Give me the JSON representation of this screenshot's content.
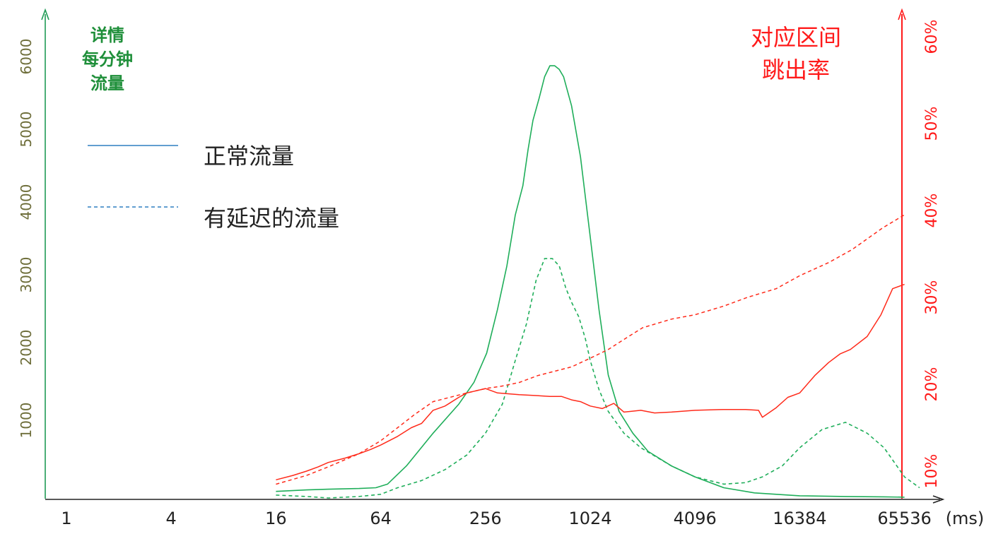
{
  "chart_data": {
    "type": "line",
    "left_axis": {
      "title_lines": [
        "详情",
        "每分钟",
        "流量"
      ],
      "ticks": [
        "1000",
        "2000",
        "3000",
        "4000",
        "5000",
        "6000"
      ],
      "tick_values": [
        1000,
        2000,
        3000,
        4000,
        5000,
        6000
      ],
      "ylim": [
        0,
        6500
      ],
      "color": "#1f9a55"
    },
    "right_axis": {
      "title_lines": [
        "对应区间",
        "跳出率"
      ],
      "ticks": [
        "10%",
        "20%",
        "30%",
        "40%",
        "50%",
        "60%"
      ],
      "tick_values": [
        10,
        20,
        30,
        40,
        50,
        60
      ],
      "ylim": [
        5,
        62
      ],
      "color": "#ff1a1a"
    },
    "x_axis": {
      "scale": "log2",
      "ticks": [
        "1",
        "4",
        "16",
        "64",
        "256",
        "1024",
        "4096",
        "16384",
        "65536"
      ],
      "tick_values": [
        1,
        4,
        16,
        64,
        256,
        1024,
        4096,
        16384,
        65536
      ],
      "unit": "(ms)"
    },
    "legend": [
      {
        "label": "正常流量",
        "style": "solid",
        "color": "#2f7fc0"
      },
      {
        "label": "有延迟的流量",
        "style": "dashed",
        "color": "#2f7fc0"
      }
    ],
    "series": [
      {
        "axis": "left",
        "style": "solid",
        "color": "#1fae5a",
        "x": [
          16,
          24,
          32,
          48,
          60,
          70,
          90,
          128,
          180,
          220,
          260,
          300,
          340,
          380,
          420,
          450,
          480,
          520,
          560,
          600,
          640,
          680,
          720,
          800,
          900,
          1024,
          1150,
          1300,
          1500,
          1800,
          2200,
          3000,
          4096,
          6000,
          9000,
          16384,
          30000,
          50000,
          65536
        ],
        "y": [
          100,
          120,
          130,
          140,
          150,
          200,
          450,
          900,
          1300,
          1600,
          2000,
          2600,
          3200,
          3900,
          4300,
          4800,
          5200,
          5500,
          5800,
          5950,
          5950,
          5900,
          5800,
          5400,
          4700,
          3600,
          2600,
          1700,
          1200,
          900,
          650,
          450,
          300,
          150,
          80,
          40,
          30,
          25,
          20
        ]
      },
      {
        "axis": "left",
        "style": "dashed",
        "color": "#1fae5a",
        "x": [
          16,
          24,
          32,
          48,
          64,
          80,
          110,
          150,
          200,
          256,
          320,
          380,
          440,
          500,
          560,
          620,
          680,
          740,
          800,
          880,
          960,
          1024,
          1150,
          1300,
          1600,
          2000,
          3000,
          4096,
          6000,
          8000,
          10000,
          13000,
          16384,
          22000,
          30000,
          40000,
          50000,
          65536,
          80000
        ],
        "y": [
          50,
          30,
          10,
          30,
          60,
          150,
          250,
          400,
          600,
          900,
          1300,
          1900,
          2400,
          3000,
          3300,
          3300,
          3200,
          2900,
          2700,
          2500,
          2200,
          1900,
          1500,
          1200,
          900,
          700,
          450,
          300,
          200,
          220,
          300,
          450,
          700,
          950,
          1050,
          900,
          700,
          300,
          150
        ]
      },
      {
        "axis": "right",
        "style": "solid",
        "color": "#ff2a1a",
        "x": [
          16,
          20,
          24,
          28,
          32,
          40,
          48,
          56,
          64,
          80,
          96,
          110,
          128,
          150,
          180,
          200,
          256,
          300,
          400,
          500,
          600,
          700,
          800,
          900,
          1024,
          1200,
          1400,
          1600,
          2000,
          2400,
          3000,
          4096,
          6000,
          8000,
          9500,
          10000,
          12000,
          14000,
          16384,
          20000,
          24000,
          28000,
          32000,
          40000,
          48000,
          56000,
          65536
        ],
        "y": [
          9,
          9.5,
          10,
          10.5,
          11,
          11.5,
          12,
          12.5,
          13,
          14,
          15,
          15.5,
          17,
          17.5,
          18.5,
          19,
          19.5,
          19,
          18.8,
          18.7,
          18.6,
          18.6,
          18.2,
          18.0,
          17.5,
          17.2,
          17.8,
          16.8,
          17.0,
          16.7,
          16.8,
          17.0,
          17.1,
          17.1,
          17.0,
          16.2,
          17.3,
          18.5,
          19.0,
          21.0,
          22.5,
          23.5,
          24.0,
          25.5,
          28.0,
          31.0,
          31.5
        ]
      },
      {
        "axis": "right",
        "style": "dashed",
        "color": "#ff2a1a",
        "x": [
          16,
          24,
          32,
          48,
          64,
          80,
          100,
          128,
          160,
          200,
          256,
          320,
          400,
          512,
          640,
          800,
          1024,
          1300,
          1700,
          2048,
          3000,
          4096,
          6000,
          8192,
          12000,
          16384,
          24000,
          32768,
          49152,
          65536
        ],
        "y": [
          8.5,
          9.5,
          10.5,
          12,
          13.5,
          15,
          16.5,
          18,
          18.5,
          19.0,
          19.5,
          19.8,
          20.2,
          21.0,
          21.5,
          22.0,
          23.0,
          24.0,
          25.5,
          26.5,
          27.5,
          28.0,
          29.0,
          30.0,
          31.0,
          32.5,
          34.0,
          35.5,
          38.0,
          39.5
        ]
      }
    ]
  }
}
